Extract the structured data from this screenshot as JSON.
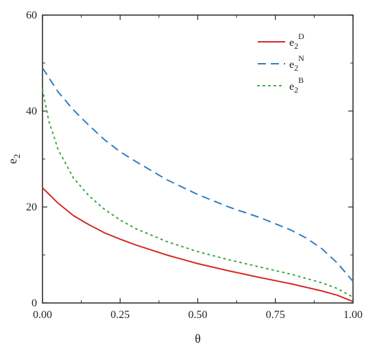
{
  "chart_data": {
    "type": "line",
    "xlabel": "θ",
    "ylabel": {
      "base": "e",
      "sub": "2"
    },
    "xlim": [
      0,
      1
    ],
    "ylim": [
      0,
      60
    ],
    "xticks": [
      "0.00",
      "0.25",
      "0.50",
      "0.75",
      "1.00"
    ],
    "xtick_values": [
      0,
      0.25,
      0.5,
      0.75,
      1.0
    ],
    "yticks": [
      "0",
      "20",
      "40",
      "60"
    ],
    "ytick_values": [
      0,
      20,
      40,
      60
    ],
    "grid": false,
    "legend_position": "top-right",
    "series": [
      {
        "name": "e2D",
        "label": {
          "base": "e",
          "sub": "2",
          "sup": "D"
        },
        "color": "#d62728",
        "dash": "solid",
        "x": [
          0.0,
          0.05,
          0.1,
          0.15,
          0.2,
          0.25,
          0.3,
          0.4,
          0.5,
          0.6,
          0.7,
          0.8,
          0.9,
          0.95,
          1.0
        ],
        "y": [
          24.0,
          20.8,
          18.2,
          16.3,
          14.6,
          13.3,
          12.1,
          10.0,
          8.2,
          6.7,
          5.3,
          4.0,
          2.5,
          1.6,
          0.3
        ]
      },
      {
        "name": "e2N",
        "label": {
          "base": "e",
          "sub": "2",
          "sup": "N"
        },
        "color": "#2f7cc4",
        "dash": "dashed",
        "x": [
          0.0,
          0.05,
          0.1,
          0.15,
          0.2,
          0.25,
          0.3,
          0.4,
          0.5,
          0.6,
          0.7,
          0.8,
          0.85,
          0.9,
          0.95,
          1.0
        ],
        "y": [
          49.0,
          44.0,
          40.2,
          37.0,
          34.0,
          31.5,
          29.5,
          25.7,
          22.6,
          20.0,
          17.8,
          15.2,
          13.5,
          11.3,
          8.3,
          4.5
        ]
      },
      {
        "name": "e2B",
        "label": {
          "base": "e",
          "sub": "2",
          "sup": "B"
        },
        "color": "#3aa33a",
        "dash": "dotted",
        "x": [
          0.0,
          0.02,
          0.05,
          0.1,
          0.15,
          0.2,
          0.25,
          0.3,
          0.4,
          0.5,
          0.6,
          0.7,
          0.8,
          0.9,
          0.95,
          1.0
        ],
        "y": [
          44.5,
          38.0,
          32.0,
          26.0,
          22.3,
          19.5,
          17.3,
          15.5,
          12.8,
          10.7,
          9.0,
          7.5,
          6.0,
          4.2,
          3.0,
          1.2
        ]
      }
    ]
  }
}
